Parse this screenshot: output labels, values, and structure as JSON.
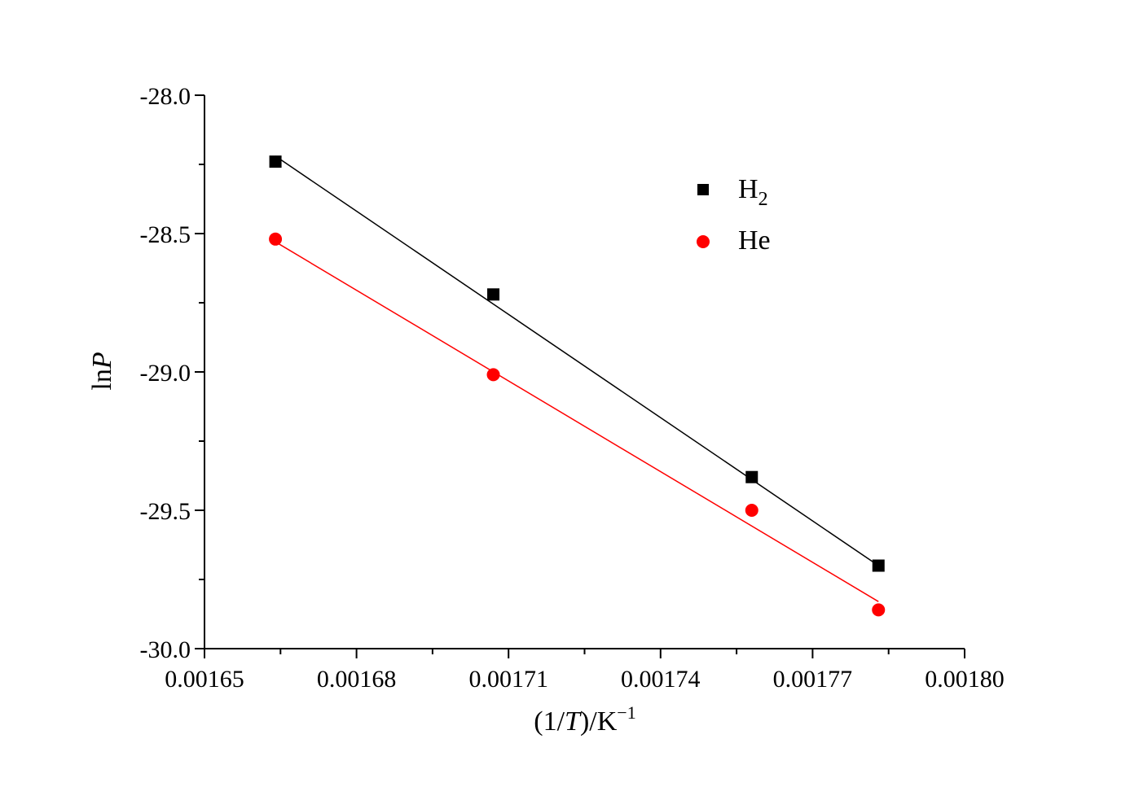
{
  "chart_data": {
    "type": "scatter",
    "xlabel": {
      "prefix": "(1/",
      "italic": "T",
      "mid": ")/K",
      "sup": "−1"
    },
    "ylabel": {
      "prefix": "ln",
      "italic": "P"
    },
    "xlim": [
      0.00165,
      0.0018
    ],
    "ylim": [
      -30.0,
      -28.0
    ],
    "x_ticks": [
      "0.00165",
      "0.00168",
      "0.00171",
      "0.00174",
      "0.00177",
      "0.00180"
    ],
    "y_ticks": [
      "-28.0",
      "-28.5",
      "-29.0",
      "-29.5",
      "-30.0"
    ],
    "legend_position": "top-right",
    "series": [
      {
        "name_base": "H",
        "name_sub": "2",
        "marker": "square",
        "color": "#000000",
        "x": [
          0.001664,
          0.001707,
          0.001758,
          0.001783
        ],
        "y": [
          -28.24,
          -28.72,
          -29.38,
          -29.7
        ],
        "fit": [
          [
            0.001664,
            -28.22
          ],
          [
            0.001783,
            -29.7
          ]
        ]
      },
      {
        "name_base": "He",
        "name_sub": "",
        "marker": "circle",
        "color": "#ff0000",
        "x": [
          0.001664,
          0.001707,
          0.001758,
          0.001783
        ],
        "y": [
          -28.52,
          -29.01,
          -29.5,
          -29.86
        ],
        "fit": [
          [
            0.001664,
            -28.53
          ],
          [
            0.001783,
            -29.83
          ]
        ]
      }
    ]
  }
}
